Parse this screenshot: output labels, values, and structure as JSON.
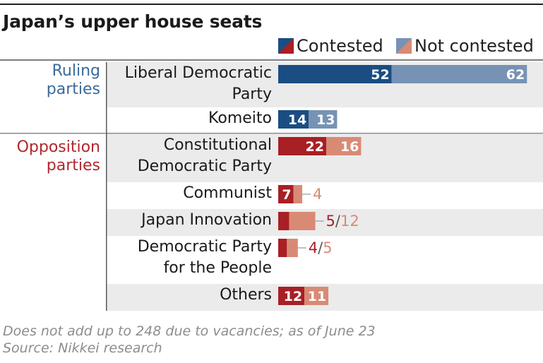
{
  "title": "Japan’s upper house seats",
  "legend": {
    "contested": "Contested",
    "not_contested": "Not contested"
  },
  "groups": {
    "ruling": [
      "Ruling",
      "parties"
    ],
    "opposition": [
      "Opposition",
      "parties"
    ]
  },
  "colors": {
    "ruling_contested": "#1a4d82",
    "ruling_not_contested": "#7792b5",
    "opposition_contested": "#a81f24",
    "opposition_not_contested": "#d98a75",
    "ruling_text": "#3b6a9c",
    "opposition_text": "#b0282d",
    "row_band": "#ebebeb"
  },
  "footnote": {
    "line1": "Does not add up to 248 due to vacancies; as of June 23",
    "line2": "Source: Nikkei research"
  },
  "chart_data": {
    "type": "bar",
    "stacked": true,
    "orientation": "horizontal",
    "title": "Japan’s upper house seats",
    "categories": [
      [
        "Liberal Democratic",
        "Party"
      ],
      [
        "Komeito"
      ],
      [
        "Constitutional",
        "Democratic Party"
      ],
      [
        "Communist"
      ],
      [
        "Japan Innovation"
      ],
      [
        "Democratic Party",
        "for the People"
      ],
      [
        "Others"
      ]
    ],
    "group": [
      "ruling",
      "ruling",
      "opposition",
      "opposition",
      "opposition",
      "opposition",
      "opposition"
    ],
    "series": [
      {
        "name": "Contested",
        "values": [
          52,
          14,
          22,
          7,
          5,
          4,
          12
        ]
      },
      {
        "name": "Not contested",
        "values": [
          62,
          13,
          16,
          4,
          12,
          5,
          11
        ]
      }
    ],
    "labels": {
      "contested": [
        "52",
        "14",
        "22",
        "7",
        "",
        "",
        "12"
      ],
      "not_contested": [
        "62",
        "13",
        "16",
        "",
        "",
        "",
        "11"
      ],
      "outside": [
        "",
        "",
        "",
        [
          "4"
        ],
        [
          "5",
          "/",
          "12"
        ],
        [
          "4",
          "/",
          "5"
        ],
        ""
      ]
    },
    "legend": "top-right",
    "grid": false
  }
}
